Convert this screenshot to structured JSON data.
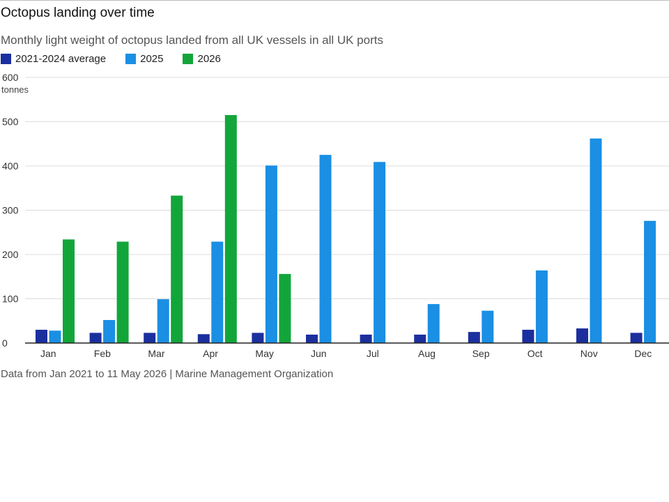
{
  "chart_data": {
    "type": "bar",
    "title": "Octopus landing over time",
    "subtitle": "Monthly light weight of octopus landed from all UK vessels in all UK ports",
    "ylabel": "tonnes",
    "ylim": [
      0,
      600
    ],
    "yticks": [
      0,
      100,
      200,
      300,
      400,
      500,
      600
    ],
    "grid": true,
    "legend_position": "top-left",
    "categories": [
      "Jan",
      "Feb",
      "Mar",
      "Apr",
      "May",
      "Jun",
      "Jul",
      "Aug",
      "Sep",
      "Oct",
      "Nov",
      "Dec"
    ],
    "series": [
      {
        "name": "2021-2024 average",
        "color": "#1b2f9e",
        "values": [
          30,
          23,
          23,
          20,
          23,
          19,
          19,
          19,
          25,
          30,
          33,
          23
        ]
      },
      {
        "name": "2025",
        "color": "#1a8fe3",
        "values": [
          28,
          52,
          99,
          229,
          401,
          425,
          409,
          88,
          73,
          164,
          462,
          276
        ]
      },
      {
        "name": "2026",
        "color": "#12a63a",
        "values": [
          234,
          229,
          333,
          515,
          156,
          null,
          null,
          null,
          null,
          null,
          null,
          null
        ]
      }
    ],
    "source": "Data from Jan 2021 to 11 May 2026  |  Marine Management Organization"
  }
}
